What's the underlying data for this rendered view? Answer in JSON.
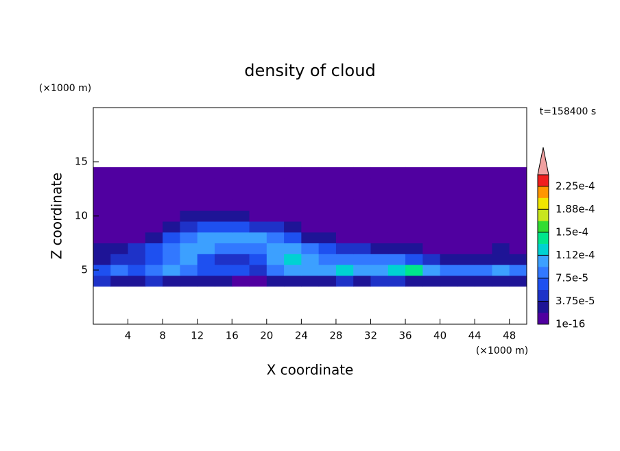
{
  "chart_data": {
    "type": "contour",
    "title": "density of cloud",
    "x_label": "X coordinate",
    "y_label": "Z coordinate",
    "x_unit": "(×1000 m)",
    "y_unit": "(×1000 m)",
    "annotation": "t=158400 s",
    "xlim": [
      0,
      50
    ],
    "ylim": [
      0,
      20
    ],
    "xticks": [
      4,
      8,
      12,
      16,
      20,
      24,
      28,
      32,
      36,
      40,
      44,
      48
    ],
    "yticks": [
      5,
      10,
      15
    ],
    "x": [
      1,
      3,
      5,
      7,
      9,
      11,
      13,
      15,
      17,
      19,
      21,
      23,
      25,
      27,
      29,
      31,
      33,
      35,
      37,
      39,
      41,
      43,
      45,
      47,
      49
    ],
    "z": [
      4,
      5,
      6,
      7,
      8,
      9,
      10,
      11,
      12,
      13,
      14
    ],
    "values": [
      [
        4.5e-05,
        2.5e-05,
        2.5e-05,
        4.5e-05,
        2.5e-05,
        2.5e-05,
        2.5e-05,
        2.5e-05,
        5e-06,
        5e-06,
        2.5e-05,
        2.5e-05,
        2.5e-05,
        2.5e-05,
        4.5e-05,
        2.5e-05,
        4.5e-05,
        4.5e-05,
        2.5e-05,
        2.5e-05,
        2.5e-05,
        2.5e-05,
        2.5e-05,
        2.5e-05,
        2.5e-05
      ],
      [
        6.5e-05,
        8.5e-05,
        6.5e-05,
        8.5e-05,
        0.0001,
        8.5e-05,
        6.5e-05,
        6.5e-05,
        6.5e-05,
        4.5e-05,
        8.5e-05,
        0.0001,
        0.0001,
        0.0001,
        0.00012,
        0.0001,
        0.0001,
        0.00012,
        0.00014,
        0.0001,
        8.5e-05,
        8.5e-05,
        8.5e-05,
        0.0001,
        8.5e-05
      ],
      [
        2.5e-05,
        4.5e-05,
        4.5e-05,
        6.5e-05,
        8.5e-05,
        0.0001,
        6.5e-05,
        4.5e-05,
        4.5e-05,
        6.5e-05,
        0.0001,
        0.00012,
        0.0001,
        8.5e-05,
        8.5e-05,
        8.5e-05,
        8.5e-05,
        8.5e-05,
        6.5e-05,
        4.5e-05,
        2.5e-05,
        2.5e-05,
        2.5e-05,
        2.5e-05,
        2.5e-05
      ],
      [
        2.5e-05,
        2.5e-05,
        4.5e-05,
        6.5e-05,
        8.5e-05,
        0.0001,
        0.0001,
        8.5e-05,
        8.5e-05,
        8.5e-05,
        0.0001,
        0.0001,
        8.5e-05,
        6.5e-05,
        4.5e-05,
        4.5e-05,
        2.5e-05,
        2.5e-05,
        2.5e-05,
        5e-06,
        5e-06,
        5e-06,
        5e-06,
        2.5e-05,
        5e-06
      ],
      [
        5e-06,
        5e-06,
        5e-06,
        2.5e-05,
        6.5e-05,
        8.5e-05,
        0.0001,
        0.0001,
        0.0001,
        0.0001,
        8.5e-05,
        6.5e-05,
        2.5e-05,
        2.5e-05,
        5e-06,
        5e-06,
        5e-06,
        5e-06,
        5e-06,
        5e-06,
        5e-06,
        5e-06,
        5e-06,
        5e-06,
        5e-06
      ],
      [
        5e-06,
        5e-06,
        5e-06,
        5e-06,
        2.5e-05,
        4.5e-05,
        6.5e-05,
        6.5e-05,
        6.5e-05,
        4.5e-05,
        4.5e-05,
        2.5e-05,
        5e-06,
        5e-06,
        5e-06,
        5e-06,
        5e-06,
        5e-06,
        5e-06,
        5e-06,
        5e-06,
        5e-06,
        5e-06,
        5e-06,
        5e-06
      ],
      [
        5e-06,
        5e-06,
        5e-06,
        5e-06,
        5e-06,
        2.5e-05,
        2.5e-05,
        2.5e-05,
        2.5e-05,
        5e-06,
        5e-06,
        5e-06,
        5e-06,
        5e-06,
        5e-06,
        5e-06,
        5e-06,
        5e-06,
        5e-06,
        5e-06,
        5e-06,
        5e-06,
        5e-06,
        5e-06,
        5e-06
      ],
      [
        5e-06,
        5e-06,
        5e-06,
        5e-06,
        5e-06,
        5e-06,
        5e-06,
        5e-06,
        5e-06,
        5e-06,
        5e-06,
        5e-06,
        5e-06,
        5e-06,
        5e-06,
        5e-06,
        5e-06,
        5e-06,
        5e-06,
        5e-06,
        5e-06,
        5e-06,
        5e-06,
        5e-06,
        5e-06
      ],
      [
        5e-06,
        5e-06,
        5e-06,
        5e-06,
        5e-06,
        5e-06,
        5e-06,
        5e-06,
        5e-06,
        5e-06,
        5e-06,
        5e-06,
        5e-06,
        5e-06,
        5e-06,
        5e-06,
        5e-06,
        5e-06,
        5e-06,
        5e-06,
        5e-06,
        5e-06,
        5e-06,
        5e-06,
        5e-06
      ],
      [
        5e-06,
        5e-06,
        5e-06,
        5e-06,
        5e-06,
        5e-06,
        5e-06,
        5e-06,
        5e-06,
        5e-06,
        5e-06,
        5e-06,
        5e-06,
        5e-06,
        5e-06,
        5e-06,
        5e-06,
        5e-06,
        5e-06,
        5e-06,
        5e-06,
        5e-06,
        5e-06,
        5e-06,
        5e-06
      ],
      [
        5e-06,
        5e-06,
        5e-06,
        5e-06,
        5e-06,
        5e-06,
        5e-06,
        5e-06,
        5e-06,
        5e-06,
        5e-06,
        5e-06,
        5e-06,
        5e-06,
        5e-06,
        5e-06,
        5e-06,
        5e-06,
        5e-06,
        5e-06,
        5e-06,
        5e-06,
        5e-06,
        5e-06,
        5e-06
      ]
    ],
    "colorbar": {
      "lim": [
        1e-16,
        0.00024375
      ],
      "colors": [
        "#5000a0",
        "#1e1496",
        "#1e32c8",
        "#1e50f0",
        "#3278ff",
        "#3ca0ff",
        "#00d2d2",
        "#00e68c",
        "#32dc32",
        "#c8e61e",
        "#f0e600",
        "#ff9600",
        "#f01e1e"
      ],
      "extend_color": "#f0a0a0",
      "ticks": [
        1e-16,
        {
          "value": 3.75e-05,
          "label": "3.75e-5"
        },
        {
          "value": 7.5e-05,
          "label": "7.5e-5"
        },
        {
          "value": 0.0001125,
          "label": "1.12e-4"
        },
        {
          "value": 0.00015,
          "label": "1.5e-4"
        },
        {
          "value": 0.0001875,
          "label": "1.88e-4"
        },
        {
          "value": 0.000225,
          "label": "2.25e-4"
        }
      ]
    }
  }
}
